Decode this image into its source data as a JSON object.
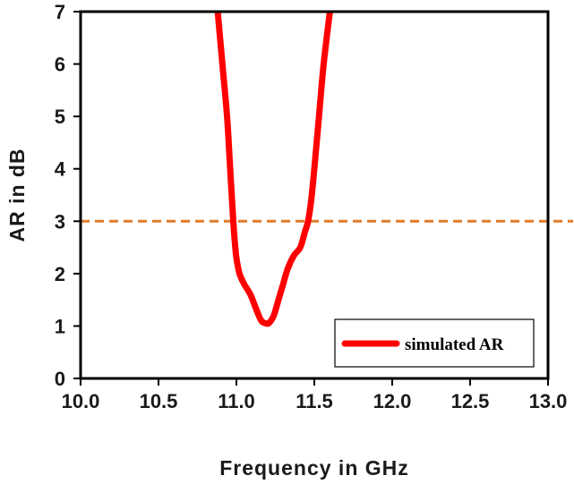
{
  "chart_data": {
    "type": "line",
    "title": "",
    "xlabel": "Frequency in GHz",
    "ylabel": "AR in dB",
    "xlim": [
      10.0,
      13.0
    ],
    "ylim": [
      0,
      7
    ],
    "x_ticks": [
      10.0,
      10.5,
      11.0,
      11.5,
      12.0,
      12.5,
      13.0
    ],
    "x_tick_labels": [
      "10.0",
      "10.5",
      "11.0",
      "11.5",
      "12.0",
      "12.5",
      "13.0"
    ],
    "y_ticks": [
      0,
      1,
      2,
      3,
      4,
      5,
      6,
      7
    ],
    "y_tick_labels": [
      "0",
      "1",
      "2",
      "3",
      "4",
      "5",
      "6",
      "7"
    ],
    "grid": false,
    "legend_position": "bottom-right",
    "series": [
      {
        "name": "simulated AR",
        "color": "#ff0000",
        "x": [
          10.88,
          10.91,
          10.94,
          10.96,
          10.98,
          10.99,
          11.0,
          11.02,
          11.05,
          11.09,
          11.13,
          11.16,
          11.19,
          11.21,
          11.24,
          11.27,
          11.3,
          11.33,
          11.37,
          11.41,
          11.44,
          11.46,
          11.48,
          11.5,
          11.53,
          11.56,
          11.6
        ],
        "y": [
          7.0,
          6.0,
          5.0,
          4.0,
          3.0,
          2.6,
          2.3,
          2.0,
          1.8,
          1.6,
          1.3,
          1.1,
          1.05,
          1.06,
          1.2,
          1.5,
          1.8,
          2.1,
          2.35,
          2.5,
          2.8,
          3.0,
          3.4,
          4.0,
          5.0,
          6.0,
          7.0
        ]
      }
    ],
    "reference_lines": [
      {
        "axis": "y",
        "value": 3,
        "color": "#e07b2a",
        "style": "dashed"
      }
    ]
  }
}
